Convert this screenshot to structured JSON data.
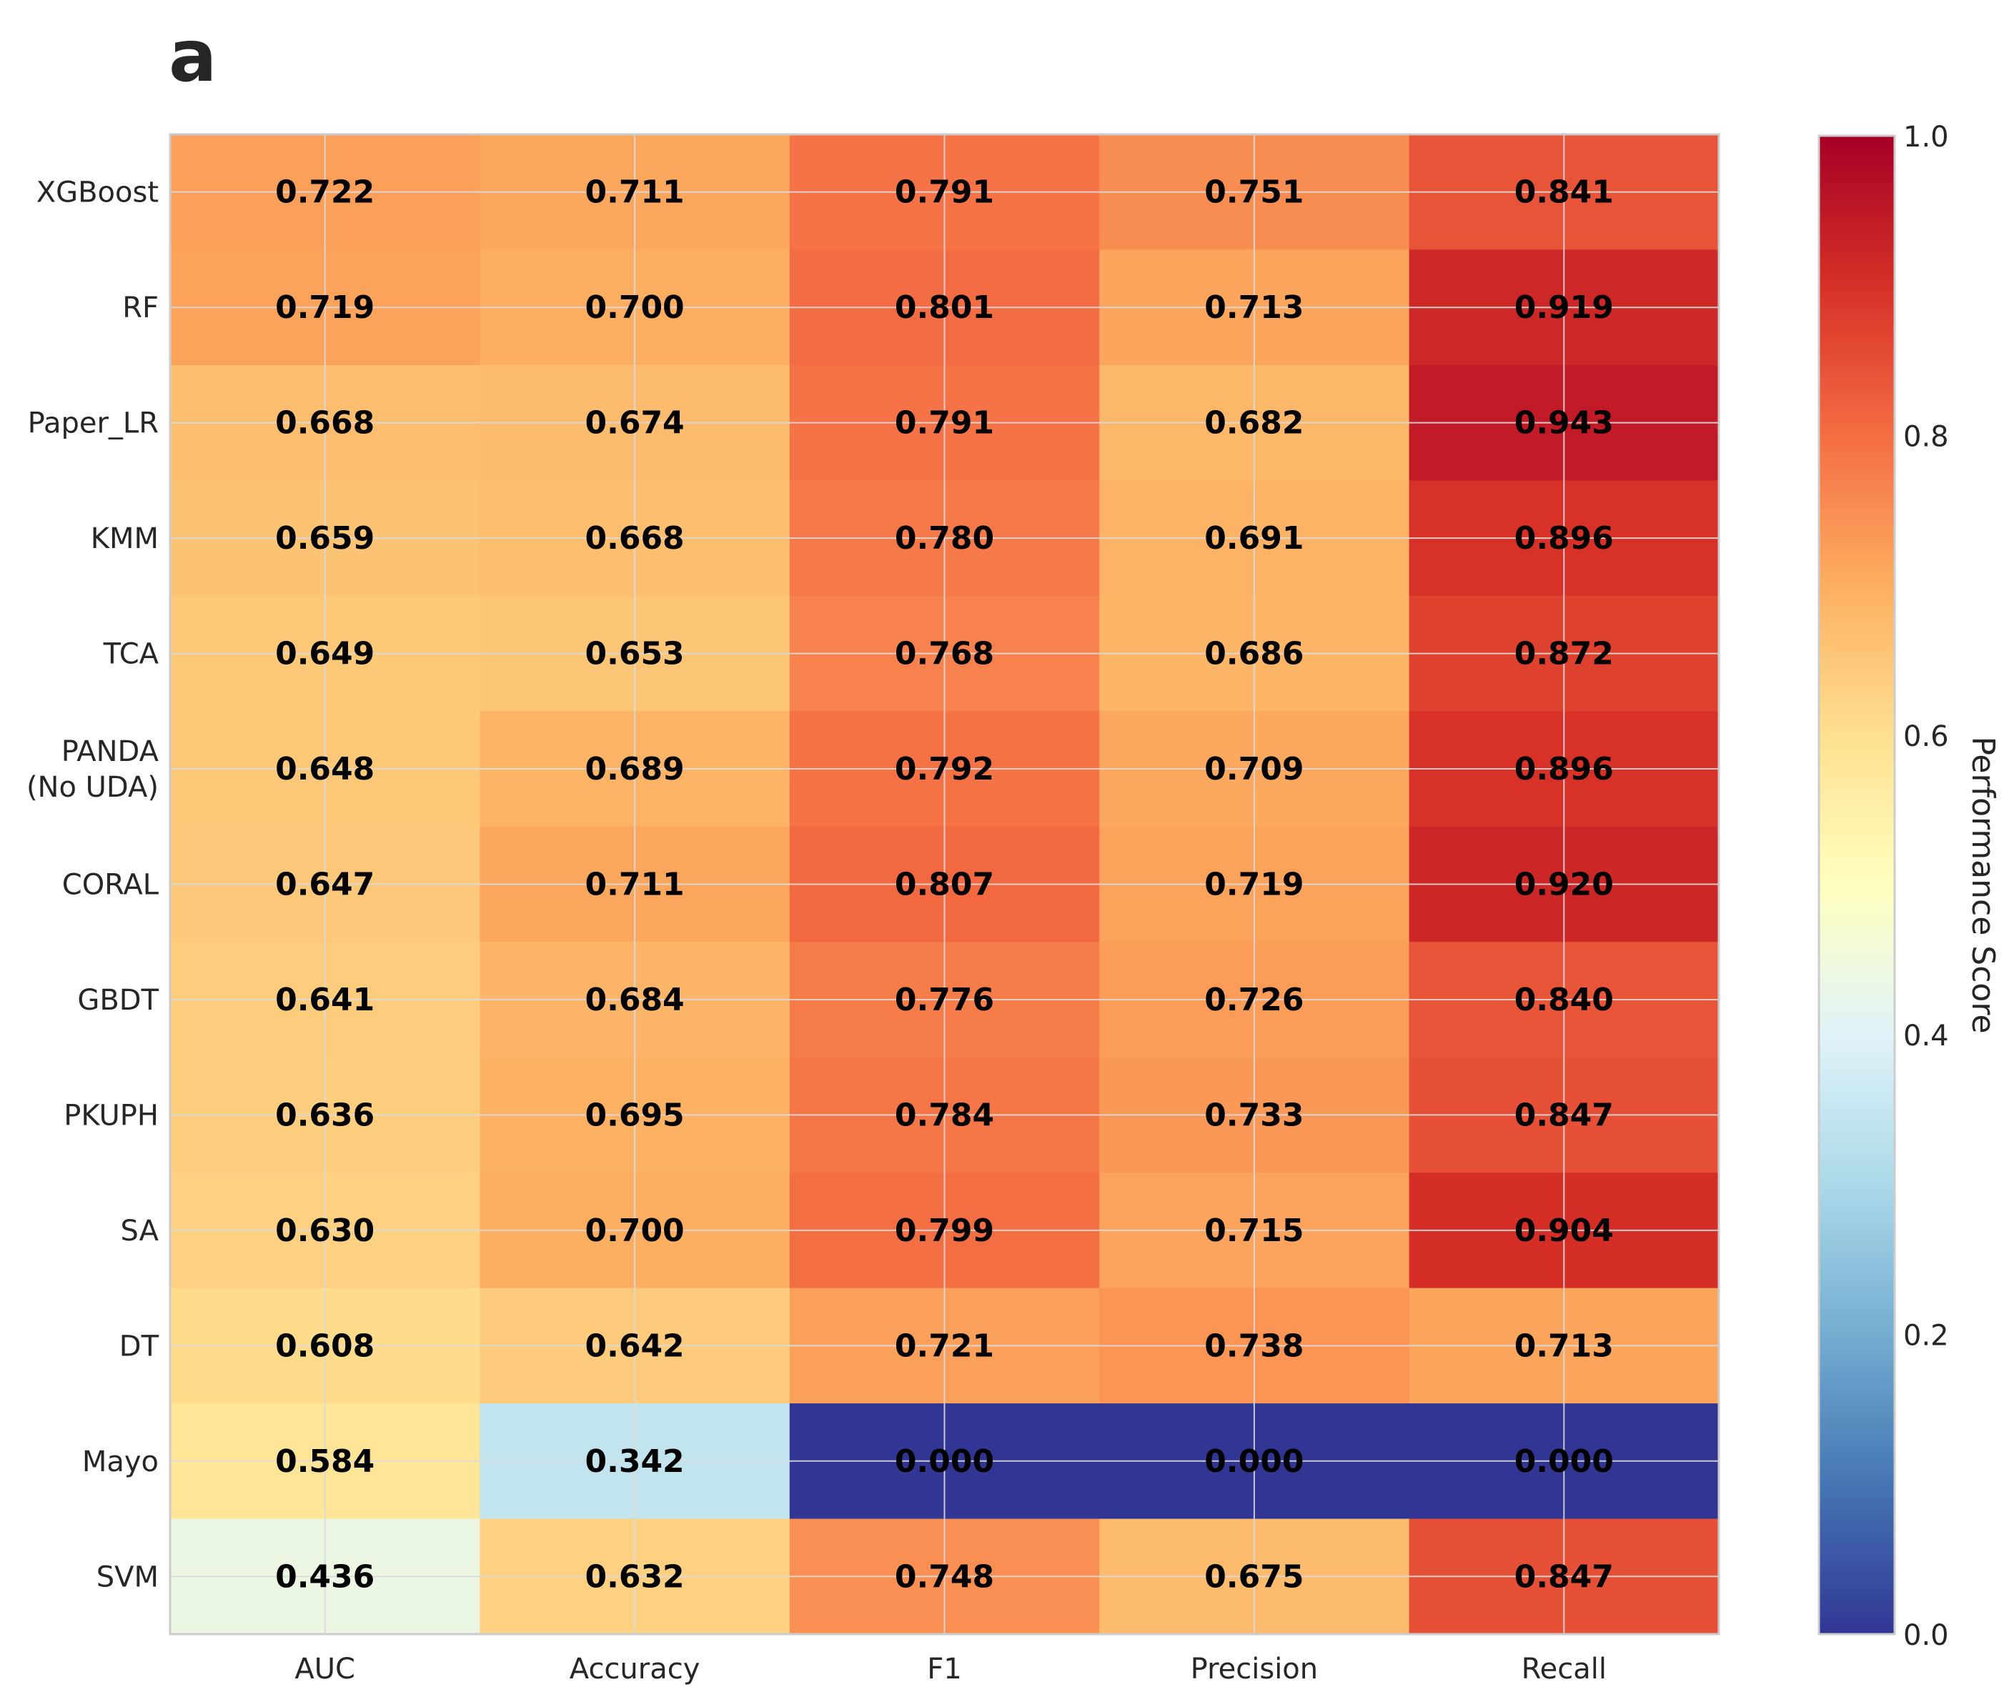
{
  "panel_label": "a",
  "chart_data": {
    "type": "heatmap",
    "title": "",
    "xlabel": "",
    "ylabel": "",
    "columns": [
      "AUC",
      "Accuracy",
      "F1",
      "Precision",
      "Recall"
    ],
    "rows": [
      "XGBoost",
      "RF",
      "Paper_LR",
      "KMM",
      "TCA",
      "PANDA\n(No UDA)",
      "CORAL",
      "GBDT",
      "PKUPH",
      "SA",
      "DT",
      "Mayo",
      "SVM"
    ],
    "values": [
      [
        0.722,
        0.711,
        0.791,
        0.751,
        0.841
      ],
      [
        0.719,
        0.7,
        0.801,
        0.713,
        0.919
      ],
      [
        0.668,
        0.674,
        0.791,
        0.682,
        0.943
      ],
      [
        0.659,
        0.668,
        0.78,
        0.691,
        0.896
      ],
      [
        0.649,
        0.653,
        0.768,
        0.686,
        0.872
      ],
      [
        0.648,
        0.689,
        0.792,
        0.709,
        0.896
      ],
      [
        0.647,
        0.711,
        0.807,
        0.719,
        0.92
      ],
      [
        0.641,
        0.684,
        0.776,
        0.726,
        0.84
      ],
      [
        0.636,
        0.695,
        0.784,
        0.733,
        0.847
      ],
      [
        0.63,
        0.7,
        0.799,
        0.715,
        0.904
      ],
      [
        0.608,
        0.642,
        0.721,
        0.738,
        0.713
      ],
      [
        0.584,
        0.342,
        0.0,
        0.0,
        0.0
      ],
      [
        0.436,
        0.632,
        0.748,
        0.675,
        0.847
      ]
    ],
    "value_labels": [
      [
        "0.722",
        "0.711",
        "0.791",
        "0.751",
        "0.841"
      ],
      [
        "0.719",
        "0.700",
        "0.801",
        "0.713",
        "0.919"
      ],
      [
        "0.668",
        "0.674",
        "0.791",
        "0.682",
        "0.943"
      ],
      [
        "0.659",
        "0.668",
        "0.780",
        "0.691",
        "0.896"
      ],
      [
        "0.649",
        "0.653",
        "0.768",
        "0.686",
        "0.872"
      ],
      [
        "0.648",
        "0.689",
        "0.792",
        "0.709",
        "0.896"
      ],
      [
        "0.647",
        "0.711",
        "0.807",
        "0.719",
        "0.920"
      ],
      [
        "0.641",
        "0.684",
        "0.776",
        "0.726",
        "0.840"
      ],
      [
        "0.636",
        "0.695",
        "0.784",
        "0.733",
        "0.847"
      ],
      [
        "0.630",
        "0.700",
        "0.799",
        "0.715",
        "0.904"
      ],
      [
        "0.608",
        "0.642",
        "0.721",
        "0.738",
        "0.713"
      ],
      [
        "0.584",
        "0.342",
        "0.000",
        "0.000",
        "0.000"
      ],
      [
        "0.436",
        "0.632",
        "0.748",
        "0.675",
        "0.847"
      ]
    ],
    "colormap": "RdYlBu_r",
    "colormap_stops": [
      "#313695",
      "#4575b4",
      "#74add1",
      "#abd9e9",
      "#e0f3f8",
      "#ffffbf",
      "#fee090",
      "#fdae61",
      "#f46d43",
      "#d73027",
      "#a50026"
    ],
    "vmin": 0.0,
    "vmax": 1.0,
    "grid": true,
    "colorbar": {
      "label": "Performance Score",
      "ticks": [
        "0.0",
        "0.2",
        "0.4",
        "0.6",
        "0.8",
        "1.0"
      ]
    }
  }
}
